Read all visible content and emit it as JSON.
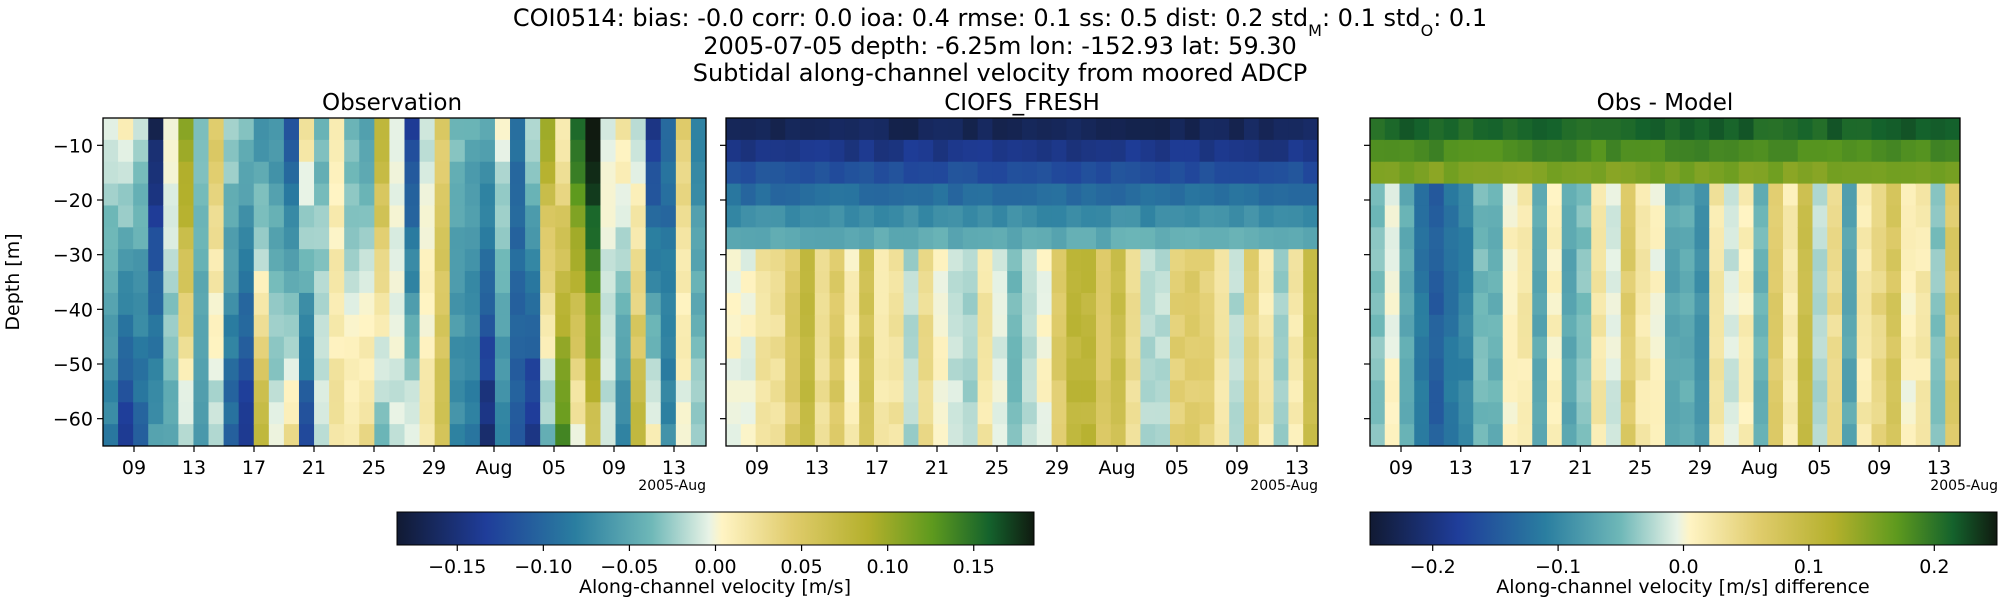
{
  "header": {
    "line1": "COI0514: bias: -0.0  corr: 0.0  ioa: 0.4  rmse: 0.1  ss: 0.5  dist: 0.2  std",
    "line1_sub_m": "M",
    "line1_mid": ": 0.1  std",
    "line1_sub_o": "O",
    "line1_end": ": 0.1",
    "line2": "2005-07-05 depth: -6.25m lon: -152.93 lat: 59.30",
    "line3": "Subtidal along-channel velocity from moored ADCP"
  },
  "chart_data": [
    {
      "type": "heatmap",
      "title": "Observation",
      "ylabel": "Depth [m]",
      "ylim": [
        -65,
        -5
      ],
      "x_ticks": [
        "09",
        "13",
        "17",
        "21",
        "25",
        "29",
        "Aug",
        "05",
        "09",
        "13"
      ],
      "x_offset_label": "2005-Aug",
      "y_ticks": [
        "−10",
        "−20",
        "−30",
        "−40",
        "−50",
        "−60"
      ],
      "colormap": "delta",
      "clim": [
        -0.185,
        0.185
      ],
      "seed": 11
    },
    {
      "type": "heatmap",
      "title": "CIOFS_FRESH",
      "ylim": [
        -65,
        -5
      ],
      "x_ticks": [
        "09",
        "13",
        "17",
        "21",
        "25",
        "29",
        "Aug",
        "05",
        "09",
        "13"
      ],
      "x_offset_label": "2005-Aug",
      "colormap": "delta",
      "clim": [
        -0.185,
        0.185
      ],
      "seed": 23
    },
    {
      "type": "heatmap",
      "title": "Obs - Model",
      "ylim": [
        -65,
        -5
      ],
      "x_ticks": [
        "09",
        "13",
        "17",
        "21",
        "25",
        "29",
        "Aug",
        "05",
        "09",
        "13"
      ],
      "x_offset_label": "2005-Aug",
      "colormap": "delta",
      "clim": [
        -0.25,
        0.25
      ],
      "seed": 37
    }
  ],
  "colorbars": [
    {
      "label": "Along-channel velocity [m/s]",
      "ticks": [
        "−0.15",
        "−0.10",
        "−0.05",
        "0.00",
        "0.05",
        "0.10",
        "0.15"
      ],
      "tick_values": [
        -0.15,
        -0.1,
        -0.05,
        0.0,
        0.05,
        0.1,
        0.15
      ],
      "clim": [
        -0.185,
        0.185
      ]
    },
    {
      "label": "Along-channel velocity [m/s] difference",
      "ticks": [
        "−0.2",
        "−0.1",
        "0.0",
        "0.1",
        "0.2"
      ],
      "tick_values": [
        -0.2,
        -0.1,
        0.0,
        0.1,
        0.2
      ],
      "clim": [
        -0.25,
        0.25
      ]
    }
  ]
}
